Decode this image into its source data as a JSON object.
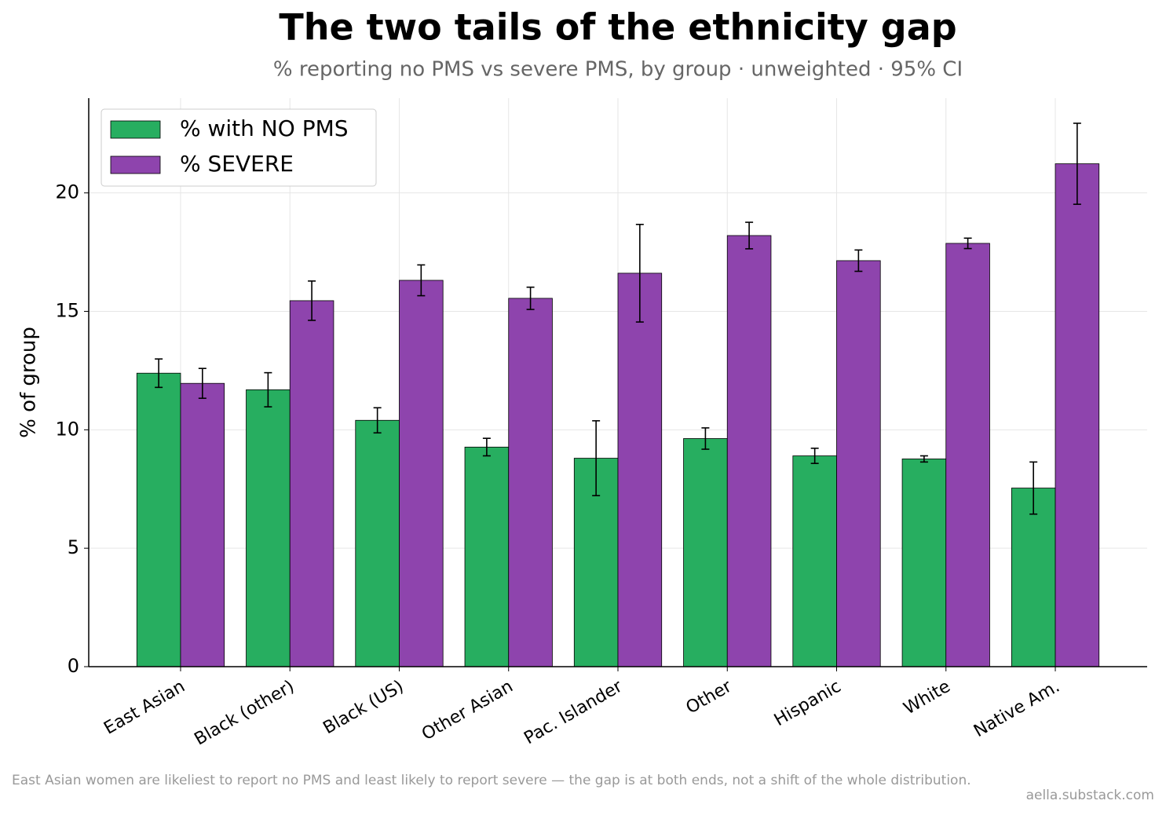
{
  "chart_data": {
    "type": "bar",
    "title": "The two tails of the ethnicity gap",
    "subtitle": "% reporting no PMS vs severe PMS, by group · unweighted · 95% CI",
    "ylabel": "% of group",
    "categories": [
      "East Asian",
      "Black (other)",
      "Black (US)",
      "Other Asian",
      "Pac. Islander",
      "Other",
      "Hispanic",
      "White",
      "Native Am."
    ],
    "series": [
      {
        "name": "% with NO PMS",
        "color": "#27ae60",
        "values": [
          12.39,
          11.69,
          10.4,
          9.27,
          8.8,
          9.63,
          8.9,
          8.77,
          7.54
        ],
        "errors": [
          0.6,
          0.72,
          0.53,
          0.37,
          1.58,
          0.45,
          0.32,
          0.13,
          1.1
        ]
      },
      {
        "name": "% SEVERE",
        "color": "#8e44ad",
        "values": [
          11.96,
          15.45,
          16.31,
          15.55,
          16.61,
          18.2,
          17.14,
          17.87,
          21.23
        ],
        "errors": [
          0.63,
          0.83,
          0.65,
          0.47,
          2.06,
          0.56,
          0.45,
          0.22,
          1.71
        ]
      }
    ],
    "ylim": [
      0,
      24
    ],
    "yticks": [
      0,
      5,
      10,
      15,
      20
    ],
    "grid": true,
    "legend": "upper left",
    "footnote": "East Asian women are likeliest to report no PMS and least likely to report severe — the gap is at both ends, not a shift of the whole distribution.",
    "credit": "aella.substack.com"
  }
}
